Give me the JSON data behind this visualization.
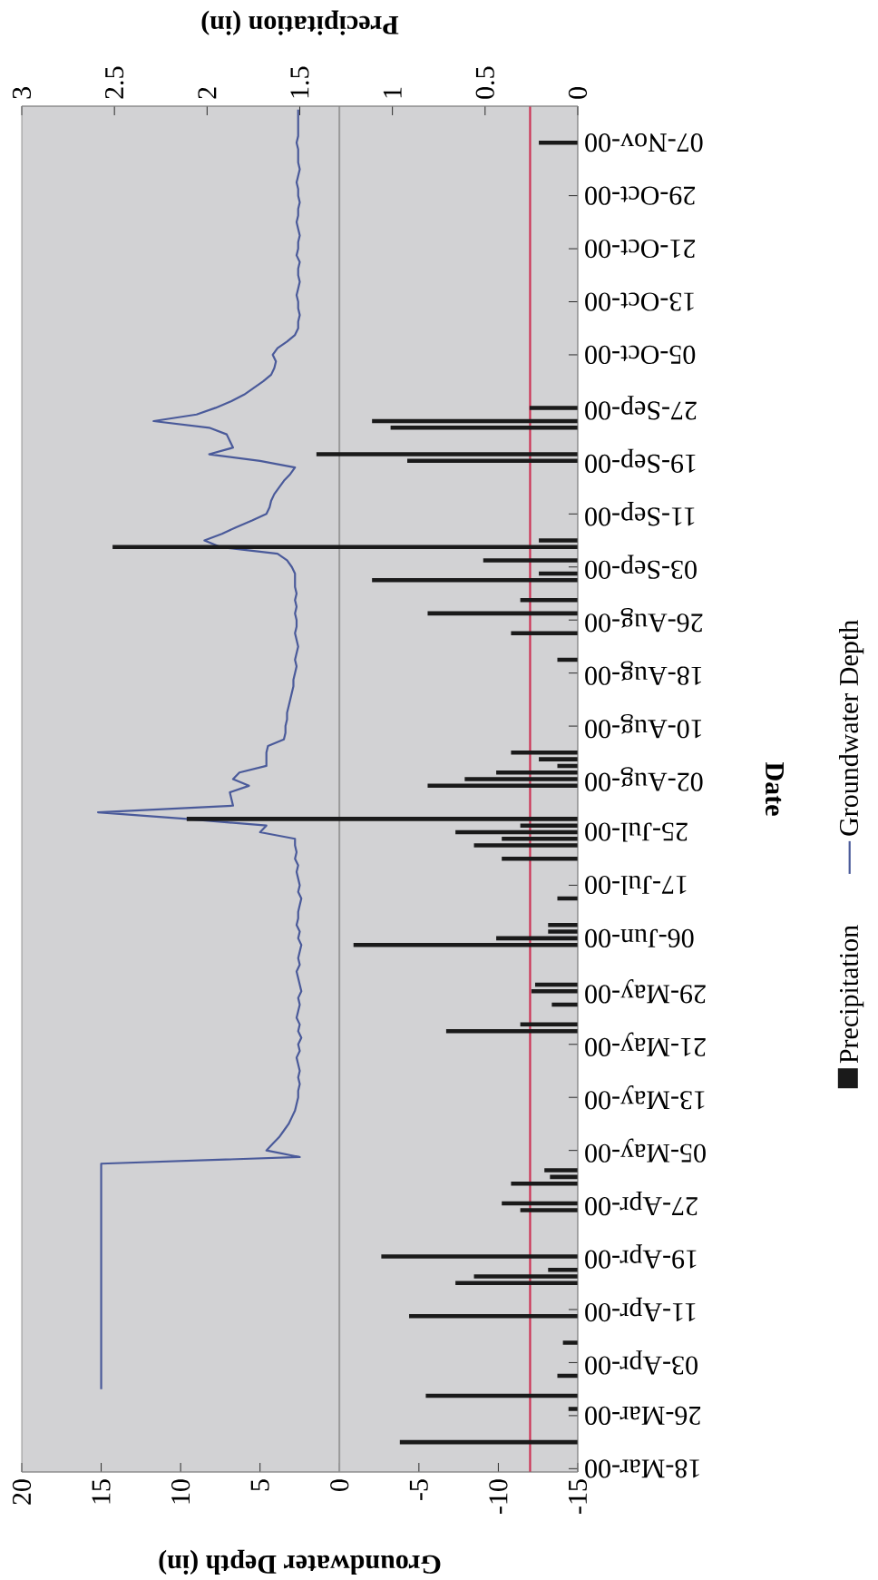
{
  "chart_data": {
    "type": "line",
    "orientation": "horizontal",
    "xlabel": "Groundwater Depth (in)",
    "x2label": "Precipitation (in)",
    "ylabel": "Date",
    "categories": [
      null,
      null,
      null,
      null,
      null,
      "07-Nov-00",
      null,
      null,
      null,
      null,
      null,
      null,
      null,
      "29-Oct-00",
      null,
      null,
      null,
      null,
      null,
      null,
      null,
      "21-Oct-00",
      null,
      null,
      null,
      null,
      null,
      null,
      null,
      "13-Oct-00",
      null,
      null,
      null,
      null,
      null,
      null,
      null,
      "05-Oct-00",
      null,
      null,
      null,
      null,
      null,
      null,
      null,
      "27-Sep-00",
      null,
      null,
      null,
      null,
      null,
      null,
      null,
      "19-Sep-00",
      null,
      null,
      null,
      null,
      null,
      null,
      null,
      "11-Sep-00",
      null,
      null,
      null,
      null,
      null,
      null,
      null,
      "03-Sep-00",
      null,
      null,
      null,
      null,
      null,
      null,
      null,
      "26-Aug-00",
      null,
      null,
      null,
      null,
      null,
      null,
      null,
      "18-Aug-00",
      null,
      null,
      null,
      null,
      null,
      null,
      null,
      "10-Aug-00",
      null,
      null,
      null,
      null,
      null,
      null,
      null,
      "02-Aug-00",
      null,
      null,
      null,
      null,
      null,
      null,
      null,
      "25-Jul-00",
      null,
      null,
      null,
      null,
      null,
      null,
      null,
      "17-Jul-00",
      null,
      null,
      null,
      null,
      null,
      null,
      null,
      "06-Jun-00",
      null,
      null,
      null,
      null,
      null,
      null,
      null,
      "29-May-00",
      null,
      null,
      null,
      null,
      null,
      null,
      null,
      "21-May-00",
      null,
      null,
      null,
      null,
      null,
      null,
      null,
      "13-May-00",
      null,
      null,
      null,
      null,
      null,
      null,
      null,
      "05-May-00",
      null,
      null,
      null,
      null,
      null,
      null,
      null,
      "27-Apr-00",
      null,
      null,
      null,
      null,
      null,
      null,
      null,
      "19-Apr-00",
      null,
      null,
      null,
      null,
      null,
      null,
      null,
      "11-Apr-00",
      null,
      null,
      null,
      null,
      null,
      null,
      null,
      "03-Apr-00",
      null,
      null,
      null,
      null,
      null,
      null,
      null,
      "26-Mar-00",
      null,
      null,
      null,
      null,
      null,
      null,
      null,
      "18-Mar-00"
    ],
    "series": [
      {
        "name": "Precipitation",
        "type": "bar",
        "axis": "x2",
        "color": "#1a1a1a",
        "values": [
          null,
          null,
          null,
          null,
          null,
          0.21,
          null,
          null,
          null,
          null,
          null,
          null,
          null,
          null,
          null,
          null,
          null,
          null,
          null,
          null,
          null,
          null,
          null,
          null,
          null,
          null,
          null,
          null,
          null,
          null,
          null,
          null,
          null,
          null,
          null,
          null,
          null,
          null,
          null,
          null,
          null,
          null,
          null,
          null,
          null,
          0.26,
          null,
          1.11,
          1.01,
          null,
          null,
          null,
          1.41,
          0.92,
          null,
          null,
          null,
          null,
          null,
          null,
          null,
          null,
          null,
          null,
          null,
          0.21,
          2.51,
          null,
          0.51,
          null,
          0.21,
          1.11,
          null,
          null,
          0.31,
          null,
          0.81,
          null,
          null,
          0.36,
          null,
          null,
          null,
          0.11,
          null,
          null,
          null,
          null,
          null,
          null,
          null,
          null,
          null,
          null,
          null,
          null,
          null,
          0.36,
          0.21,
          0.11,
          0.44,
          0.61,
          0.81,
          null,
          null,
          null,
          null,
          2.11,
          0.31,
          0.66,
          0.41,
          0.56,
          null,
          0.41,
          null,
          null,
          null,
          null,
          null,
          0.11,
          null,
          null,
          null,
          0.16,
          0.16,
          0.44,
          1.21,
          null,
          null,
          null,
          null,
          null,
          0.23,
          0.25,
          null,
          0.14,
          null,
          null,
          0.31,
          0.71,
          null,
          null,
          null,
          null,
          null,
          null,
          null,
          null,
          null,
          null,
          null,
          null,
          null,
          null,
          null,
          null,
          null,
          null,
          null,
          null,
          0.18,
          0.15,
          0.36,
          null,
          null,
          0.41,
          0.31,
          null,
          null,
          null,
          null,
          null,
          null,
          1.06,
          null,
          0.16,
          0.56,
          0.66,
          null,
          null,
          null,
          null,
          0.91,
          null,
          null,
          null,
          0.08,
          null,
          null,
          null,
          null,
          0.11,
          null,
          null,
          0.82,
          null,
          0.05,
          null,
          null,
          null,
          null,
          0.96,
          null,
          null,
          null,
          null
        ]
      },
      {
        "name": "Groundwater Depth",
        "color": "#4a5a9a",
        "line_style": "solid",
        "values": [
          2.6,
          2.6,
          2.6,
          2.6,
          2.6,
          2.7,
          2.6,
          2.6,
          2.6,
          2.5,
          2.6,
          2.7,
          2.6,
          2.6,
          2.5,
          2.6,
          2.6,
          2.7,
          2.6,
          2.5,
          2.6,
          2.6,
          2.7,
          2.5,
          2.6,
          2.6,
          2.5,
          2.6,
          2.7,
          2.6,
          2.6,
          2.5,
          2.6,
          2.6,
          2.8,
          3.3,
          3.9,
          4.2,
          4.0,
          4.1,
          4.3,
          4.8,
          5.4,
          6.0,
          6.8,
          7.8,
          9.0,
          11.7,
          8.2,
          7.1,
          6.9,
          6.7,
          8.2,
          5.0,
          2.8,
          3.1,
          3.5,
          3.8,
          4.1,
          4.3,
          4.4,
          4.6,
          5.5,
          6.5,
          7.4,
          8.5,
          7.5,
          3.9,
          3.3,
          3.0,
          2.8,
          2.8,
          2.8,
          2.7,
          2.8,
          2.7,
          2.8,
          2.7,
          2.7,
          2.8,
          2.7,
          2.6,
          2.7,
          2.8,
          2.7,
          2.8,
          2.9,
          2.9,
          3.0,
          3.1,
          3.2,
          3.3,
          3.3,
          3.4,
          3.4,
          3.5,
          4.5,
          4.6,
          4.6,
          4.6,
          6.3,
          6.7,
          5.7,
          6.9,
          6.8,
          6.7,
          15.2,
          9.6,
          4.6,
          5.0,
          2.8,
          2.8,
          2.7,
          2.8,
          2.6,
          2.7,
          2.6,
          2.5,
          2.6,
          2.4,
          2.5,
          2.6,
          2.6,
          2.7,
          2.5,
          2.6,
          2.4,
          2.5,
          2.6,
          2.5,
          2.7,
          2.6,
          2.5,
          2.4,
          2.6,
          2.5,
          2.6,
          2.7,
          2.5,
          2.6,
          2.4,
          2.6,
          2.5,
          2.7,
          2.6,
          2.5,
          2.6,
          2.5,
          2.6,
          2.6,
          2.7,
          2.8,
          3.0,
          3.2,
          3.5,
          3.8,
          4.2,
          4.6,
          2.5,
          15,
          15,
          15,
          15,
          15,
          15,
          15,
          15,
          15,
          15,
          15,
          15,
          15,
          15,
          15,
          15,
          15,
          15,
          15,
          15,
          15,
          15,
          15,
          15,
          15,
          15,
          15,
          15,
          15,
          15,
          15,
          15,
          15,
          15,
          15,
          null,
          null,
          null,
          null,
          null,
          null,
          null,
          null,
          null,
          null,
          null,
          null
        ]
      }
    ],
    "xlim": [
      20,
      -15
    ],
    "xticks": [
      20,
      15,
      10,
      5,
      0,
      -5,
      -10,
      -15
    ],
    "x2lim": [
      3,
      0
    ],
    "x2ticks": [
      3,
      2.5,
      2,
      1.5,
      1,
      0.5,
      0
    ],
    "ref_lines": [
      {
        "axis": "x",
        "value": 0,
        "color": "#9a9a9a"
      },
      {
        "axis": "x",
        "value": -12,
        "color": "#cc3355"
      }
    ],
    "legend": "right"
  }
}
